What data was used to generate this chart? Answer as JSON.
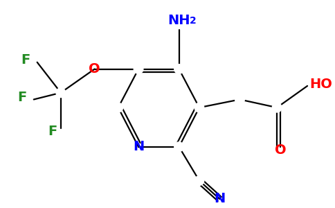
{
  "background_color": "#ffffff",
  "figsize": [
    4.84,
    3.0
  ],
  "dpi": 100,
  "colors": {
    "C": "#000000",
    "N": "#0000ff",
    "O": "#ff0000",
    "F": "#228b22",
    "bond": "#000000"
  },
  "lw": 1.6,
  "font_size": 14,
  "sub_font_size": 10
}
